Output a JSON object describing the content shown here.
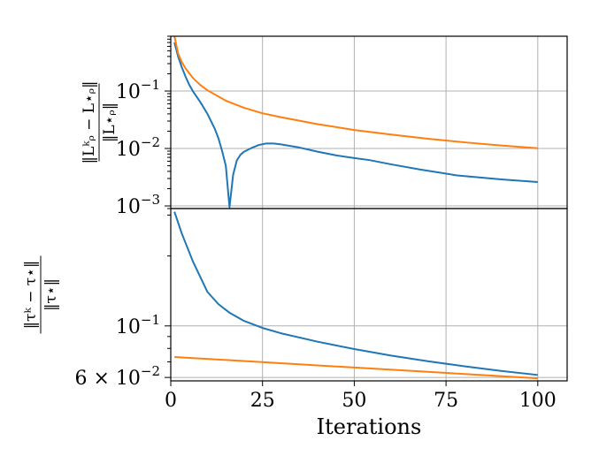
{
  "chart_data": [
    {
      "type": "line",
      "panel": "top",
      "yscale": "log",
      "ylim": [
        0.0009,
        0.9
      ],
      "xlim": [
        0,
        108
      ],
      "grid": true,
      "ylabel": "‖L_ρ^k − L_ρ^⋆‖ / ‖L_ρ^⋆‖",
      "ylabel_num": "‖L",
      "ylabel_den": "‖L",
      "yticks": [
        {
          "value": 0.1,
          "label": "10",
          "exp": "−1"
        },
        {
          "value": 0.01,
          "label": "10",
          "exp": "−2"
        },
        {
          "value": 0.001,
          "label": "10",
          "exp": "−3"
        }
      ],
      "series": [
        {
          "color": "#1f77b4",
          "x": [
            1,
            2,
            3,
            4,
            5,
            6,
            8,
            10,
            12,
            13,
            14,
            15,
            16,
            17,
            18,
            19,
            20,
            22,
            24,
            26,
            28,
            30,
            35,
            40,
            45,
            50,
            54,
            60,
            68,
            78,
            90,
            100
          ],
          "y": [
            0.7,
            0.4,
            0.26,
            0.18,
            0.13,
            0.1,
            0.065,
            0.04,
            0.022,
            0.015,
            0.009,
            0.005,
            0.00095,
            0.0035,
            0.0062,
            0.0078,
            0.0088,
            0.0102,
            0.0115,
            0.0122,
            0.0122,
            0.0118,
            0.0104,
            0.0088,
            0.0076,
            0.0068,
            0.0063,
            0.0053,
            0.0043,
            0.0034,
            0.0029,
            0.0026
          ]
        },
        {
          "color": "#ff7f0e",
          "x": [
            1,
            2,
            3,
            4,
            5,
            6,
            8,
            10,
            15,
            20,
            25,
            30,
            40,
            50,
            60,
            70,
            80,
            90,
            100
          ],
          "y": [
            0.9,
            0.45,
            0.32,
            0.25,
            0.205,
            0.17,
            0.128,
            0.103,
            0.068,
            0.051,
            0.041,
            0.035,
            0.0265,
            0.021,
            0.0175,
            0.0148,
            0.0128,
            0.0113,
            0.0101
          ]
        }
      ]
    },
    {
      "type": "line",
      "panel": "bottom",
      "yscale": "log",
      "ylim": [
        0.058,
        0.32
      ],
      "xlim": [
        0,
        108
      ],
      "grid": true,
      "xlabel": "Iterations",
      "ylabel": "‖τ^k − τ^⋆‖ / ‖τ^⋆‖",
      "yticks": [
        {
          "value": 0.1,
          "label": "10",
          "exp": "−1"
        },
        {
          "value": 0.06,
          "label": "6 × 10",
          "exp": "−2"
        }
      ],
      "xticks": [
        0,
        25,
        50,
        75,
        100
      ],
      "series": [
        {
          "color": "#1f77b4",
          "x": [
            1,
            3,
            6,
            10,
            13,
            16,
            20,
            25,
            30,
            40,
            50,
            60,
            70,
            80,
            90,
            100
          ],
          "y": [
            0.31,
            0.25,
            0.19,
            0.14,
            0.124,
            0.114,
            0.105,
            0.098,
            0.093,
            0.0855,
            0.0795,
            0.0745,
            0.0705,
            0.067,
            0.064,
            0.0615
          ]
        },
        {
          "color": "#ff7f0e",
          "x": [
            1,
            100
          ],
          "y": [
            0.0735,
            0.0595
          ]
        }
      ]
    }
  ]
}
